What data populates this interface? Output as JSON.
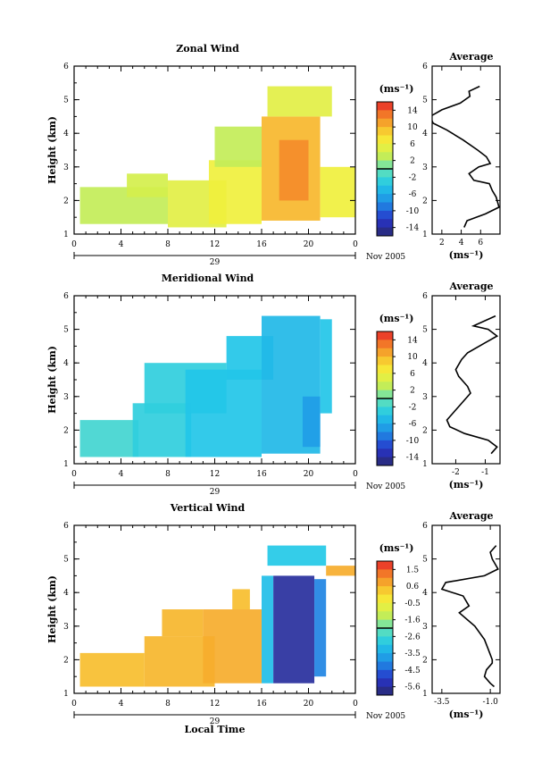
{
  "chart_data": [
    {
      "type": "heatmap",
      "title": "Zonal Wind",
      "ylabel": "Height (km)",
      "xticks": [
        "0",
        "4",
        "8",
        "12",
        "16",
        "20",
        "0"
      ],
      "xlim": [
        0,
        24
      ],
      "ylim": [
        1,
        6
      ],
      "yticks": [
        "1",
        "2",
        "3",
        "4",
        "5",
        "6"
      ],
      "date_label": "29",
      "month_label": "Nov 2005",
      "colorbar": {
        "unit": "(ms⁻¹)",
        "ticks": [
          "14",
          "10",
          "6",
          "2",
          "-2",
          "-6",
          "-10",
          "-14"
        ],
        "range": [
          -16,
          16
        ]
      },
      "regions": [
        {
          "x": [
            0.5,
            8
          ],
          "y": [
            1.3,
            2.4
          ],
          "value": 3
        },
        {
          "x": [
            4.5,
            8
          ],
          "y": [
            2.1,
            2.8
          ],
          "value": 4
        },
        {
          "x": [
            8,
            13
          ],
          "y": [
            1.2,
            2.6
          ],
          "value": 5
        },
        {
          "x": [
            11.5,
            16
          ],
          "y": [
            1.3,
            3.2
          ],
          "value": 6
        },
        {
          "x": [
            12,
            16
          ],
          "y": [
            3.0,
            4.2
          ],
          "value": 3
        },
        {
          "x": [
            16,
            21
          ],
          "y": [
            1.4,
            4.5
          ],
          "value": 10
        },
        {
          "x": [
            17.5,
            20
          ],
          "y": [
            2.0,
            3.8
          ],
          "value": 12
        },
        {
          "x": [
            16.5,
            22
          ],
          "y": [
            4.5,
            5.4
          ],
          "value": 5
        },
        {
          "x": [
            21,
            24
          ],
          "y": [
            1.5,
            3.0
          ],
          "value": 6
        }
      ],
      "profile": {
        "title": "Average",
        "xlabel": "(ms⁻¹)",
        "xticks": [
          "2",
          "4",
          "6"
        ],
        "xlim": [
          1,
          8
        ],
        "x": [
          5.9,
          4.8,
          4.9,
          3.9,
          2.0,
          0.8,
          1.1,
          2.5,
          4.2,
          5.7,
          6.6,
          7.0,
          5.8,
          4.8,
          5.3,
          6.9,
          7.2,
          7.6,
          7.9,
          6.5,
          4.6,
          4.3
        ],
        "y": [
          5.4,
          5.25,
          5.1,
          4.9,
          4.7,
          4.5,
          4.3,
          4.1,
          3.8,
          3.5,
          3.3,
          3.1,
          3.0,
          2.8,
          2.6,
          2.5,
          2.3,
          2.1,
          1.8,
          1.6,
          1.4,
          1.2
        ]
      }
    },
    {
      "type": "heatmap",
      "title": "Meridional Wind",
      "ylabel": "Height (km)",
      "xticks": [
        "0",
        "4",
        "8",
        "12",
        "16",
        "20",
        "0"
      ],
      "xlim": [
        0,
        24
      ],
      "ylim": [
        1,
        6
      ],
      "yticks": [
        "1",
        "2",
        "3",
        "4",
        "5",
        "6"
      ],
      "date_label": "29",
      "month_label": "Nov 2005",
      "colorbar": {
        "unit": "(ms⁻¹)",
        "ticks": [
          "14",
          "10",
          "6",
          "2",
          "-2",
          "-6",
          "-10",
          "-14"
        ],
        "range": [
          -16,
          16
        ]
      },
      "regions": [
        {
          "x": [
            0.5,
            5.5
          ],
          "y": [
            1.2,
            2.3
          ],
          "value": -2
        },
        {
          "x": [
            5,
            10
          ],
          "y": [
            1.2,
            2.8
          ],
          "value": -3
        },
        {
          "x": [
            6,
            13
          ],
          "y": [
            2.5,
            4.0
          ],
          "value": -3
        },
        {
          "x": [
            9.5,
            16
          ],
          "y": [
            1.2,
            3.8
          ],
          "value": -4
        },
        {
          "x": [
            13,
            17
          ],
          "y": [
            3.5,
            4.8
          ],
          "value": -4
        },
        {
          "x": [
            16,
            21
          ],
          "y": [
            1.3,
            5.4
          ],
          "value": -5
        },
        {
          "x": [
            19.5,
            21
          ],
          "y": [
            1.5,
            3.0
          ],
          "value": -7
        },
        {
          "x": [
            21,
            22
          ],
          "y": [
            2.5,
            5.3
          ],
          "value": -4
        }
      ],
      "profile": {
        "title": "Average",
        "xlabel": "(ms⁻¹)",
        "xticks": [
          "-2",
          "-1"
        ],
        "xlim": [
          -2.8,
          -0.5
        ],
        "x": [
          -0.65,
          -1.4,
          -0.9,
          -0.6,
          -1.0,
          -1.6,
          -1.8,
          -2.0,
          -1.9,
          -1.6,
          -1.5,
          -1.7,
          -1.9,
          -2.1,
          -2.3,
          -2.2,
          -1.7,
          -0.9,
          -0.6,
          -0.8
        ],
        "y": [
          5.4,
          5.1,
          5.0,
          4.8,
          4.6,
          4.3,
          4.1,
          3.8,
          3.6,
          3.3,
          3.1,
          2.9,
          2.7,
          2.5,
          2.3,
          2.1,
          1.9,
          1.7,
          1.5,
          1.3
        ]
      }
    },
    {
      "type": "heatmap",
      "title": "Vertical Wind",
      "ylabel": "Height (km)",
      "xlabel": "Local Time",
      "xticks": [
        "0",
        "4",
        "8",
        "12",
        "16",
        "20",
        "0"
      ],
      "xlim": [
        0,
        24
      ],
      "ylim": [
        1,
        6
      ],
      "yticks": [
        "1",
        "2",
        "3",
        "4",
        "5",
        "6"
      ],
      "date_label": "29",
      "month_label": "Nov 2005",
      "colorbar": {
        "unit": "(ms⁻¹)",
        "ticks": [
          "1.5",
          "0.6",
          "-0.5",
          "-1.6",
          "-2.6",
          "-3.5",
          "-4.5",
          "-5.6"
        ],
        "range": [
          -6.1,
          2.0
        ]
      },
      "regions": [
        {
          "x": [
            0.5,
            6
          ],
          "y": [
            1.2,
            2.2
          ],
          "value": 0.4
        },
        {
          "x": [
            6,
            12
          ],
          "y": [
            1.2,
            2.7
          ],
          "value": 0.5
        },
        {
          "x": [
            7.5,
            11
          ],
          "y": [
            2.7,
            3.5
          ],
          "value": 0.5
        },
        {
          "x": [
            11,
            16
          ],
          "y": [
            1.3,
            3.5
          ],
          "value": 0.6
        },
        {
          "x": [
            13.5,
            15
          ],
          "y": [
            3.5,
            4.1
          ],
          "value": 0.4
        },
        {
          "x": [
            16,
            17
          ],
          "y": [
            1.3,
            4.5
          ],
          "value": -3.2
        },
        {
          "x": [
            17,
            20.5
          ],
          "y": [
            1.3,
            4.5
          ],
          "value": -5.6
        },
        {
          "x": [
            20.5,
            21.5
          ],
          "y": [
            1.5,
            4.4
          ],
          "value": -4.2
        },
        {
          "x": [
            16.5,
            21.5
          ],
          "y": [
            4.8,
            5.4
          ],
          "value": -3.0
        },
        {
          "x": [
            21.5,
            24
          ],
          "y": [
            4.5,
            4.8
          ],
          "value": 0.6
        }
      ],
      "profile": {
        "title": "Average",
        "xlabel": "(ms⁻¹)",
        "xticks": [
          "-3.5",
          "-1.0"
        ],
        "xlim": [
          -4.0,
          -0.5
        ],
        "x": [
          -0.7,
          -1.0,
          -0.9,
          -0.6,
          -1.3,
          -3.3,
          -3.5,
          -2.4,
          -2.1,
          -2.6,
          -1.8,
          -1.3,
          -1.1,
          -0.9,
          -0.9,
          -1.2,
          -1.3,
          -1.0,
          -0.8
        ],
        "y": [
          5.4,
          5.2,
          5.0,
          4.7,
          4.5,
          4.3,
          4.1,
          3.9,
          3.6,
          3.4,
          3.0,
          2.6,
          2.3,
          2.0,
          1.9,
          1.7,
          1.5,
          1.3,
          1.2
        ]
      }
    }
  ]
}
